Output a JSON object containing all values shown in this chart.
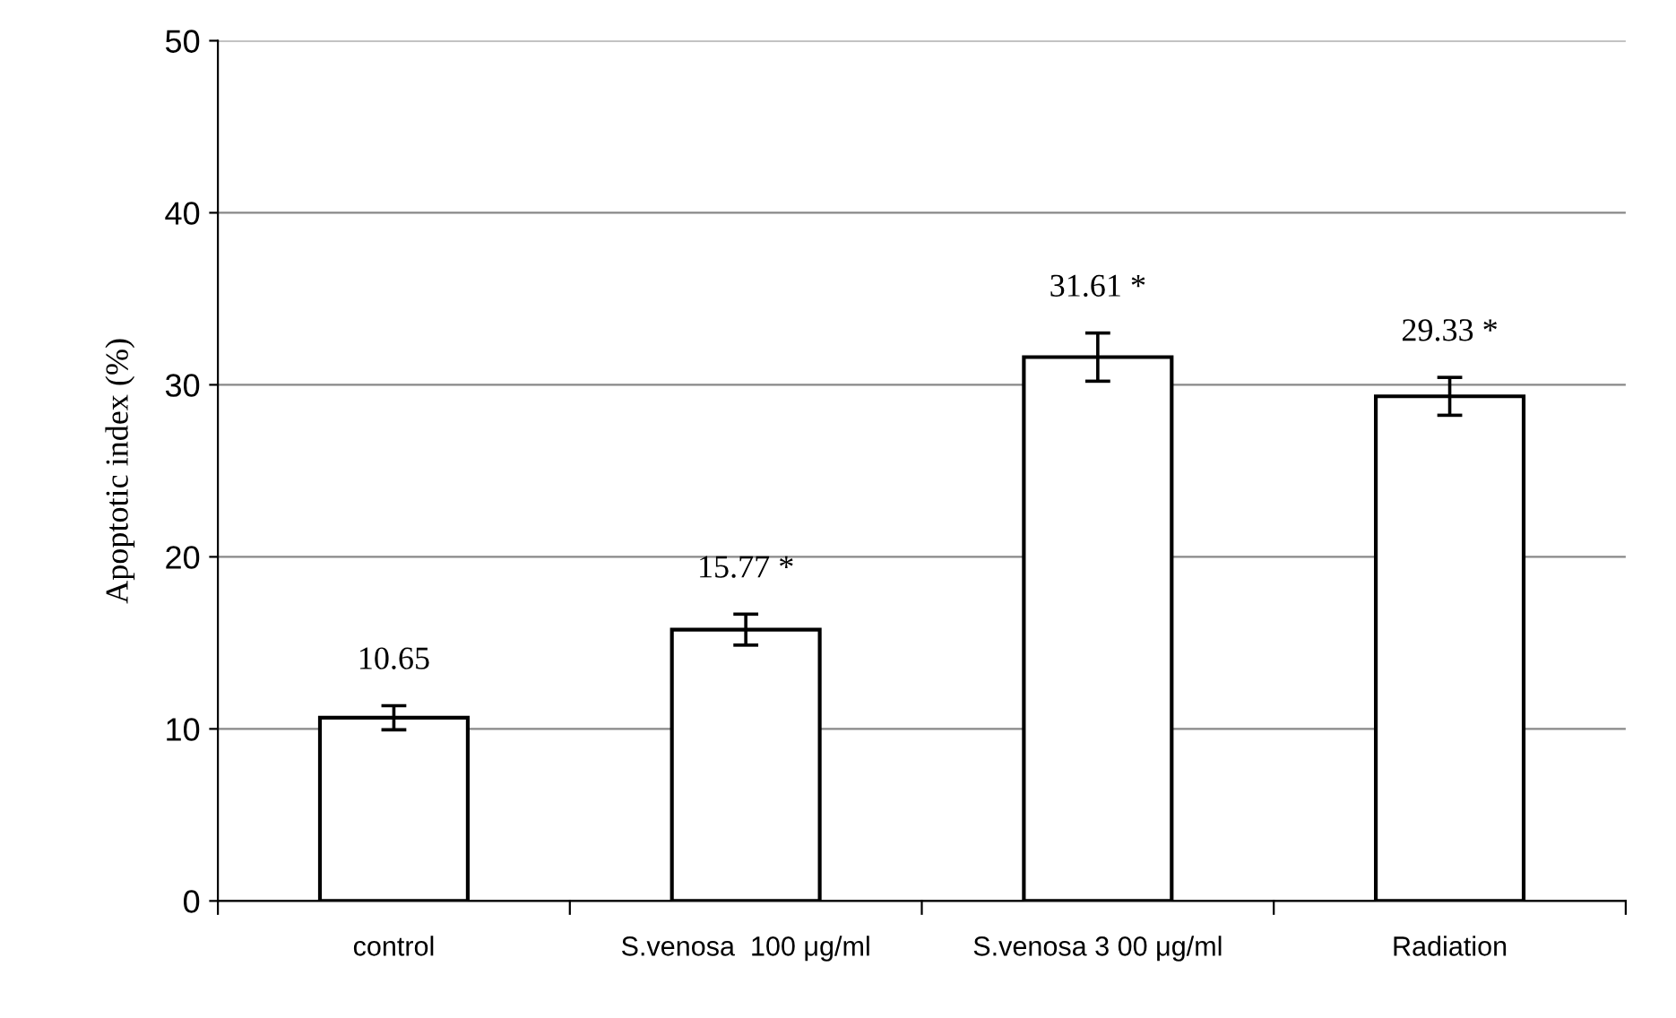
{
  "chart_data": {
    "type": "bar",
    "ylabel": "Apoptotic index (%)",
    "categories": [
      "control",
      "S.venosa  100 μg/ml",
      "S.venosa 3 00 μg/ml",
      "Radiation"
    ],
    "values": [
      10.65,
      15.77,
      31.61,
      29.33
    ],
    "errors": [
      0.7,
      0.9,
      1.4,
      1.1
    ],
    "value_labels": [
      "10.65",
      "15.77 *",
      "31.61 *",
      "29.33 *"
    ],
    "color": "#ffffff",
    "ylim": [
      0,
      50
    ],
    "yticks": [
      0,
      10,
      20,
      30,
      40,
      50
    ],
    "grid": "y",
    "legend": false
  }
}
